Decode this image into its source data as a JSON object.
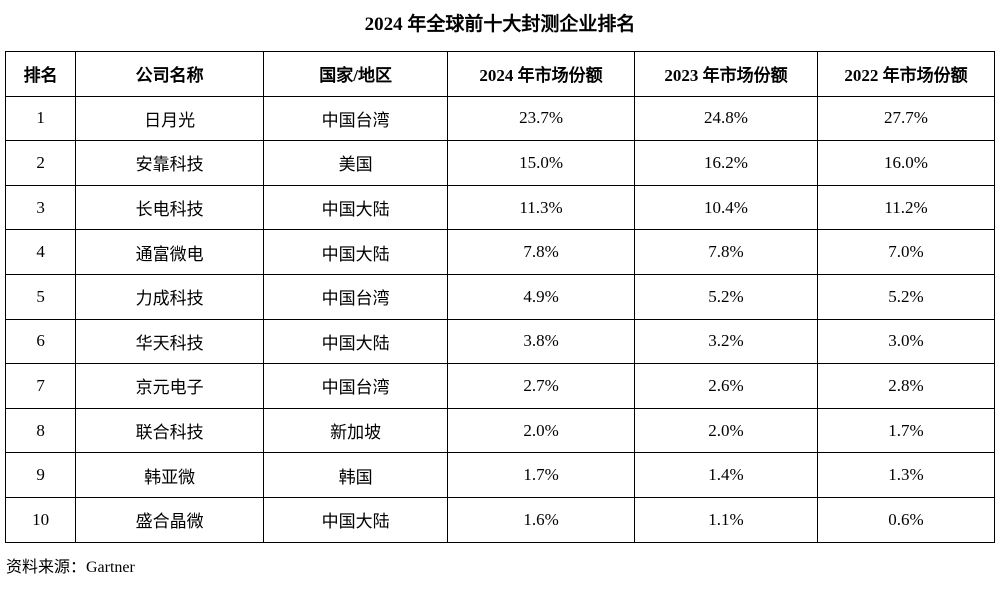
{
  "title": "2024 年全球前十大封测企业排名",
  "source_note": "资料来源：Gartner",
  "colors": {
    "text": "#000000",
    "border": "#000000",
    "background": "#ffffff"
  },
  "table": {
    "headers": [
      "排名",
      "公司名称",
      "国家/地区",
      "2024 年市场份额",
      "2023 年市场份额",
      "2022 年市场份额"
    ],
    "rows": [
      [
        "1",
        "日月光",
        "中国台湾",
        "23.7%",
        "24.8%",
        "27.7%"
      ],
      [
        "2",
        "安靠科技",
        "美国",
        "15.0%",
        "16.2%",
        "16.0%"
      ],
      [
        "3",
        "长电科技",
        "中国大陆",
        "11.3%",
        "10.4%",
        "11.2%"
      ],
      [
        "4",
        "通富微电",
        "中国大陆",
        "7.8%",
        "7.8%",
        "7.0%"
      ],
      [
        "5",
        "力成科技",
        "中国台湾",
        "4.9%",
        "5.2%",
        "5.2%"
      ],
      [
        "6",
        "华天科技",
        "中国大陆",
        "3.8%",
        "3.2%",
        "3.0%"
      ],
      [
        "7",
        "京元电子",
        "中国台湾",
        "2.7%",
        "2.6%",
        "2.8%"
      ],
      [
        "8",
        "联合科技",
        "新加坡",
        "2.0%",
        "2.0%",
        "1.7%"
      ],
      [
        "9",
        "韩亚微",
        "韩国",
        "1.7%",
        "1.4%",
        "1.3%"
      ],
      [
        "10",
        "盛合晶微",
        "中国大陆",
        "1.6%",
        "1.1%",
        "0.6%"
      ]
    ]
  }
}
